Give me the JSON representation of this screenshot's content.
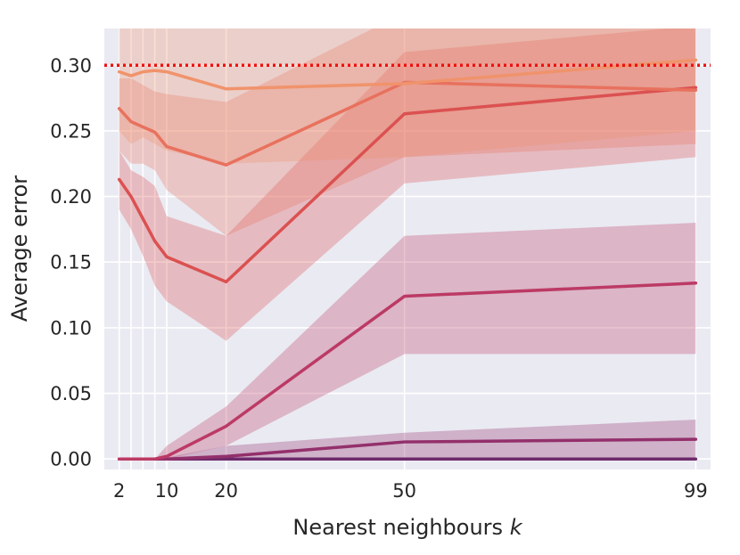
{
  "chart_data": {
    "type": "line",
    "title": "",
    "xlabel": "Nearest neighbours",
    "xlabel_var": "k",
    "ylabel": "Average error",
    "xlim": [
      -0.5,
      101.5
    ],
    "ylim": [
      -0.008,
      0.328
    ],
    "x": [
      2,
      4,
      6,
      8,
      10,
      20,
      50,
      99
    ],
    "xticks": [
      2,
      10,
      20,
      50,
      99
    ],
    "yticks": [
      0.0,
      0.05,
      0.1,
      0.15,
      0.2,
      0.25,
      0.3
    ],
    "ytick_labels": [
      "0.00",
      "0.05",
      "0.10",
      "0.15",
      "0.20",
      "0.25",
      "0.30"
    ],
    "grid": true,
    "background": "#eaeaf2",
    "reference_line": {
      "y": 0.3,
      "color": "#ee1111",
      "style": "dotted"
    },
    "series": [
      {
        "values": [
          0.0,
          0.0,
          0.0,
          0.0,
          0.0,
          0.0,
          0.0,
          0.0
        ],
        "lower": [
          0.0,
          0.0,
          0.0,
          0.0,
          0.0,
          0.0,
          0.0,
          0.0
        ],
        "upper": [
          0.0,
          0.0,
          0.0,
          0.0,
          0.0,
          0.0,
          0.0,
          0.0
        ],
        "color": "#6e2a6a"
      },
      {
        "values": [
          0.0,
          0.0,
          0.0,
          0.0,
          0.0,
          0.002,
          0.013,
          0.015
        ],
        "lower": [
          0.0,
          0.0,
          0.0,
          0.0,
          0.0,
          0.0,
          0.0,
          0.0
        ],
        "upper": [
          0.0,
          0.0,
          0.0,
          0.0,
          0.001,
          0.01,
          0.02,
          0.03
        ],
        "color": "#93306b"
      },
      {
        "values": [
          0.0,
          0.0,
          0.0,
          0.0,
          0.002,
          0.025,
          0.124,
          0.134
        ],
        "lower": [
          0.0,
          0.0,
          0.0,
          0.0,
          0.0,
          0.01,
          0.08,
          0.08
        ],
        "upper": [
          0.0,
          0.0,
          0.0,
          0.0,
          0.01,
          0.04,
          0.17,
          0.18
        ],
        "color": "#bc3a65"
      },
      {
        "values": [
          0.213,
          0.2,
          0.183,
          0.166,
          0.154,
          0.135,
          0.263,
          0.283
        ],
        "lower": [
          0.19,
          0.175,
          0.155,
          0.132,
          0.12,
          0.09,
          0.21,
          0.23
        ],
        "upper": [
          0.235,
          0.22,
          0.215,
          0.208,
          0.185,
          0.17,
          0.31,
          0.33
        ],
        "color": "#db5151"
      },
      {
        "values": [
          0.267,
          0.257,
          0.253,
          0.249,
          0.238,
          0.224,
          0.287,
          0.281
        ],
        "lower": [
          0.235,
          0.225,
          0.225,
          0.22,
          0.205,
          0.17,
          0.23,
          0.24
        ],
        "upper": [
          0.29,
          0.29,
          0.285,
          0.28,
          0.278,
          0.272,
          0.34,
          0.34
        ],
        "color": "#e8715e"
      },
      {
        "values": [
          0.295,
          0.292,
          0.295,
          0.296,
          0.295,
          0.282,
          0.286,
          0.304
        ],
        "lower": [
          0.25,
          0.24,
          0.245,
          0.24,
          0.235,
          0.225,
          0.23,
          0.25
        ],
        "upper": [
          0.34,
          0.34,
          0.34,
          0.34,
          0.34,
          0.34,
          0.34,
          0.34
        ],
        "color": "#f0936c"
      }
    ]
  }
}
